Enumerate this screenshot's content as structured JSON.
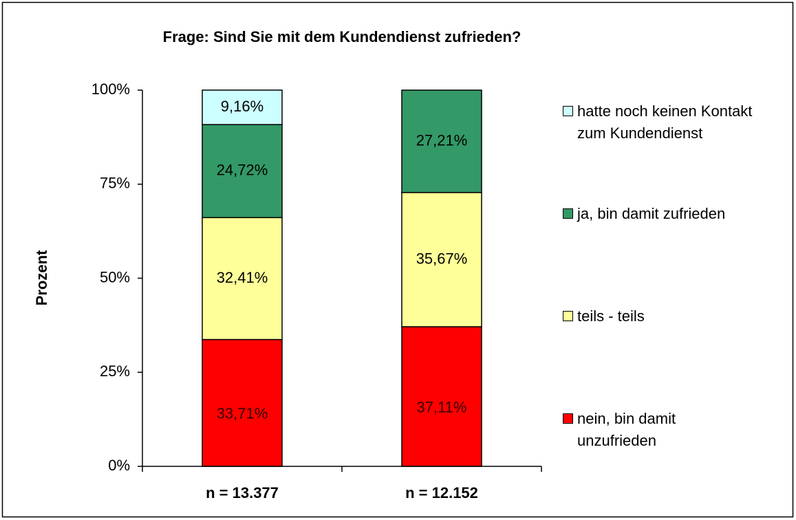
{
  "chart_data": {
    "type": "stacked_bar",
    "title": "Frage: Sind Sie mit dem Kundendienst zufrieden?",
    "y_label": "Prozent",
    "categories": [
      "n = 13.377",
      "n = 12.152"
    ],
    "series": [
      {
        "name": "nein, bin damit\nunzufrieden",
        "color": "#ff0000",
        "values": [
          33.71,
          37.11
        ],
        "value_labels": [
          "33,71%",
          "37,11%"
        ]
      },
      {
        "name": "teils - teils",
        "color": "#ffff99",
        "values": [
          32.41,
          35.67
        ],
        "value_labels": [
          "32,41%",
          "35,67%"
        ]
      },
      {
        "name": "ja, bin damit zufrieden",
        "color": "#339966",
        "values": [
          24.72,
          27.21
        ],
        "value_labels": [
          "24,72%",
          "27,21%"
        ]
      },
      {
        "name": "hatte noch keinen Kontakt\nzum Kundendienst",
        "color": "#ccffff",
        "values": [
          9.16,
          null
        ],
        "value_labels": [
          "9,16%",
          null
        ]
      }
    ],
    "ylim": [
      0,
      100
    ],
    "yticks": [
      {
        "value": 0,
        "label": "0%"
      },
      {
        "value": 25,
        "label": "25%"
      },
      {
        "value": 50,
        "label": "50%"
      },
      {
        "value": 75,
        "label": "75%"
      },
      {
        "value": 100,
        "label": "100%"
      }
    ],
    "grid": false,
    "legend": "right"
  }
}
